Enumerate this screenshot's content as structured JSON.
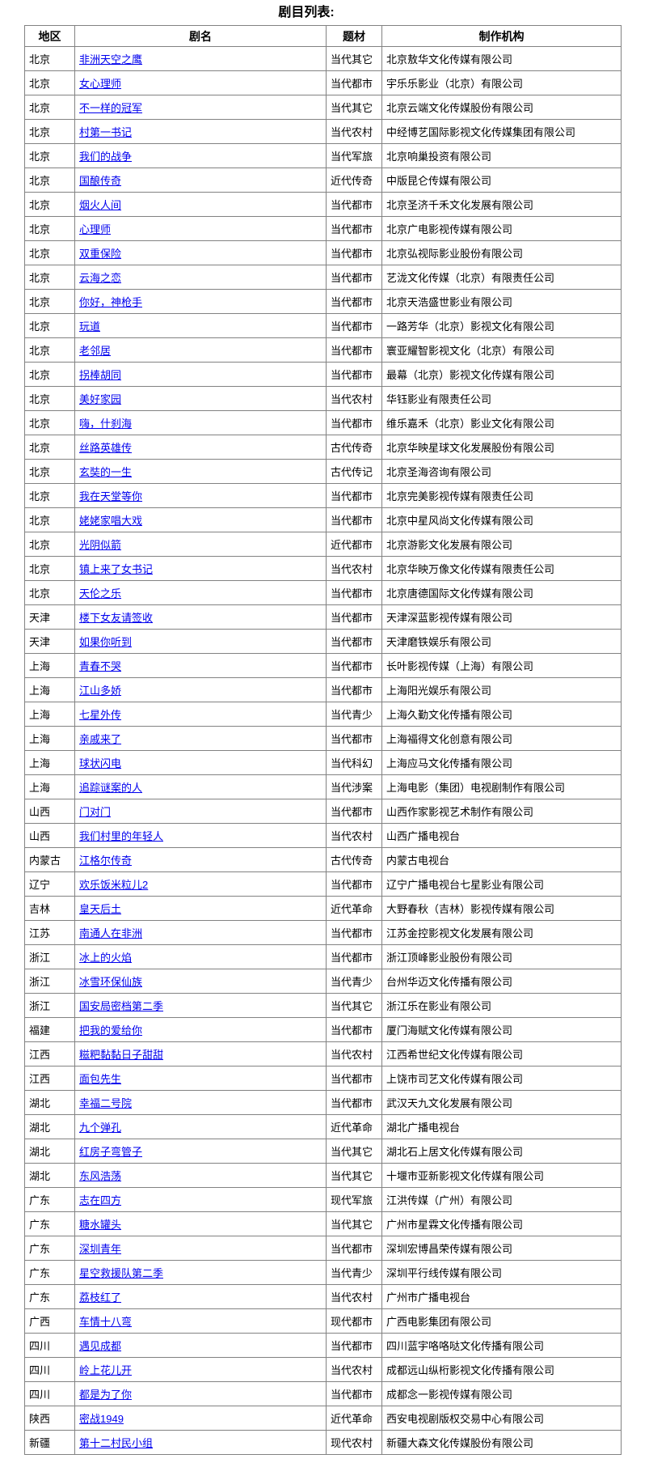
{
  "page": {
    "title": "剧目列表:"
  },
  "colors": {
    "link": "#0000EE",
    "border": "#828282",
    "text": "#000000",
    "background": "#ffffff"
  },
  "table": {
    "headers": [
      "地区",
      "剧名",
      "题材",
      "制作机构"
    ],
    "rows": [
      {
        "region": "北京",
        "title": "非洲天空之鹰",
        "genre": "当代其它",
        "producer": "北京敖华文化传媒有限公司"
      },
      {
        "region": "北京",
        "title": "女心理师",
        "genre": "当代都市",
        "producer": "宇乐乐影业（北京）有限公司"
      },
      {
        "region": "北京",
        "title": "不一样的冠军",
        "genre": "当代其它",
        "producer": "北京云端文化传媒股份有限公司"
      },
      {
        "region": "北京",
        "title": "村第一书记",
        "genre": "当代农村",
        "producer": "中经博艺国际影视文化传媒集团有限公司"
      },
      {
        "region": "北京",
        "title": "我们的战争",
        "genre": "当代军旅",
        "producer": "北京响巢投资有限公司"
      },
      {
        "region": "北京",
        "title": "国酿传奇",
        "genre": "近代传奇",
        "producer": "中版昆仑传媒有限公司"
      },
      {
        "region": "北京",
        "title": "烟火人间",
        "genre": "当代都市",
        "producer": "北京圣济千禾文化发展有限公司"
      },
      {
        "region": "北京",
        "title": "心理师",
        "genre": "当代都市",
        "producer": "北京广电影视传媒有限公司"
      },
      {
        "region": "北京",
        "title": "双重保险",
        "genre": "当代都市",
        "producer": "北京弘视际影业股份有限公司"
      },
      {
        "region": "北京",
        "title": "云海之恋",
        "genre": "当代都市",
        "producer": "艺泷文化传媒（北京）有限责任公司"
      },
      {
        "region": "北京",
        "title": "你好，神枪手",
        "genre": "当代都市",
        "producer": "北京天浩盛世影业有限公司"
      },
      {
        "region": "北京",
        "title": "玩道",
        "genre": "当代都市",
        "producer": "一路芳华（北京）影视文化有限公司"
      },
      {
        "region": "北京",
        "title": "老邻居",
        "genre": "当代都市",
        "producer": "寰亚耀智影视文化（北京）有限公司"
      },
      {
        "region": "北京",
        "title": "拐棒胡同",
        "genre": "当代都市",
        "producer": "最幕（北京）影视文化传媒有限公司"
      },
      {
        "region": "北京",
        "title": "美好家园",
        "genre": "当代农村",
        "producer": "华钰影业有限责任公司"
      },
      {
        "region": "北京",
        "title": "嗨，什刹海",
        "genre": "当代都市",
        "producer": "维乐嘉禾（北京）影业文化有限公司"
      },
      {
        "region": "北京",
        "title": "丝路英雄传",
        "genre": "古代传奇",
        "producer": "北京华映星球文化发展股份有限公司"
      },
      {
        "region": "北京",
        "title": "玄奘的一生",
        "genre": "古代传记",
        "producer": "北京圣海咨询有限公司"
      },
      {
        "region": "北京",
        "title": "我在天堂等你",
        "genre": "当代都市",
        "producer": "北京完美影视传媒有限责任公司"
      },
      {
        "region": "北京",
        "title": "姥姥家唱大戏",
        "genre": "当代都市",
        "producer": "北京中星风尚文化传媒有限公司"
      },
      {
        "region": "北京",
        "title": "光阴似箭",
        "genre": "近代都市",
        "producer": "北京游影文化发展有限公司"
      },
      {
        "region": "北京",
        "title": "镇上来了女书记",
        "genre": "当代农村",
        "producer": "北京华映万像文化传媒有限责任公司"
      },
      {
        "region": "北京",
        "title": "天伦之乐",
        "genre": "当代都市",
        "producer": "北京唐德国际文化传媒有限公司"
      },
      {
        "region": "天津",
        "title": "楼下女友请签收",
        "genre": "当代都市",
        "producer": "天津深蓝影视传媒有限公司"
      },
      {
        "region": "天津",
        "title": "如果你听到",
        "genre": "当代都市",
        "producer": "天津磨铁娱乐有限公司"
      },
      {
        "region": "上海",
        "title": "青春不哭",
        "genre": "当代都市",
        "producer": "长叶影视传媒（上海）有限公司"
      },
      {
        "region": "上海",
        "title": "江山多娇",
        "genre": "当代都市",
        "producer": "上海阳光娱乐有限公司"
      },
      {
        "region": "上海",
        "title": "七星外传",
        "genre": "当代青少",
        "producer": "上海久勤文化传播有限公司"
      },
      {
        "region": "上海",
        "title": "亲戚来了",
        "genre": "当代都市",
        "producer": "上海福得文化创意有限公司"
      },
      {
        "region": "上海",
        "title": "球状闪电",
        "genre": "当代科幻",
        "producer": "上海应马文化传播有限公司"
      },
      {
        "region": "上海",
        "title": "追踪谜案的人",
        "genre": "当代涉案",
        "producer": "上海电影（集团）电视剧制作有限公司"
      },
      {
        "region": "山西",
        "title": "门对门",
        "genre": "当代都市",
        "producer": "山西作家影视艺术制作有限公司"
      },
      {
        "region": "山西",
        "title": "我们村里的年轻人",
        "genre": "当代农村",
        "producer": "山西广播电视台"
      },
      {
        "region": "内蒙古",
        "title": "江格尔传奇",
        "genre": "古代传奇",
        "producer": "内蒙古电视台"
      },
      {
        "region": "辽宁",
        "title": "欢乐饭米粒儿2",
        "genre": "当代都市",
        "producer": "辽宁广播电视台七星影业有限公司"
      },
      {
        "region": "吉林",
        "title": "皇天后土",
        "genre": "近代革命",
        "producer": "大野春秋（吉林）影视传媒有限公司"
      },
      {
        "region": "江苏",
        "title": "南通人在非洲",
        "genre": "当代都市",
        "producer": "江苏金控影视文化发展有限公司"
      },
      {
        "region": "浙江",
        "title": "冰上的火焰",
        "genre": "当代都市",
        "producer": "浙江顶峰影业股份有限公司"
      },
      {
        "region": "浙江",
        "title": "冰雪环保仙族",
        "genre": "当代青少",
        "producer": "台州华迈文化传播有限公司"
      },
      {
        "region": "浙江",
        "title": "国安局密档第二季",
        "genre": "当代其它",
        "producer": "浙江乐在影业有限公司"
      },
      {
        "region": "福建",
        "title": "把我的爱给你",
        "genre": "当代都市",
        "producer": "厦门海赋文化传媒有限公司"
      },
      {
        "region": "江西",
        "title": "糍粑黏黏日子甜甜",
        "genre": "当代农村",
        "producer": "江西希世纪文化传媒有限公司"
      },
      {
        "region": "江西",
        "title": "面包先生",
        "genre": "当代都市",
        "producer": "上饶市司艺文化传媒有限公司"
      },
      {
        "region": "湖北",
        "title": "幸福二号院",
        "genre": "当代都市",
        "producer": "武汉天九文化发展有限公司"
      },
      {
        "region": "湖北",
        "title": "九个弹孔",
        "genre": "近代革命",
        "producer": "湖北广播电视台"
      },
      {
        "region": "湖北",
        "title": "红房子弯管子",
        "genre": "当代其它",
        "producer": "湖北石上居文化传媒有限公司"
      },
      {
        "region": "湖北",
        "title": "东风浩荡",
        "genre": "当代其它",
        "producer": "十堰市亚新影视文化传媒有限公司"
      },
      {
        "region": "广东",
        "title": "志在四方",
        "genre": "现代军旅",
        "producer": "江洪传媒（广州）有限公司"
      },
      {
        "region": "广东",
        "title": "糖水罐头",
        "genre": "当代其它",
        "producer": "广州市星霖文化传播有限公司"
      },
      {
        "region": "广东",
        "title": "深圳青年",
        "genre": "当代都市",
        "producer": "深圳宏博昌荣传媒有限公司"
      },
      {
        "region": "广东",
        "title": "星空救援队第二季",
        "genre": "当代青少",
        "producer": "深圳平行线传媒有限公司"
      },
      {
        "region": "广东",
        "title": "荔枝红了",
        "genre": "当代农村",
        "producer": "广州市广播电视台"
      },
      {
        "region": "广西",
        "title": "车情十八弯",
        "genre": "现代都市",
        "producer": "广西电影集团有限公司"
      },
      {
        "region": "四川",
        "title": "遇见成都",
        "genre": "当代都市",
        "producer": "四川蓝宇咯咯哒文化传播有限公司"
      },
      {
        "region": "四川",
        "title": "岭上花儿开",
        "genre": "当代农村",
        "producer": "成都远山纵桁影视文化传播有限公司"
      },
      {
        "region": "四川",
        "title": "都是为了你",
        "genre": "当代都市",
        "producer": "成都念一影视传媒有限公司"
      },
      {
        "region": "陕西",
        "title": "密战1949",
        "genre": "近代革命",
        "producer": "西安电视剧版权交易中心有限公司"
      },
      {
        "region": "新疆",
        "title": "第十二村民小组",
        "genre": "现代农村",
        "producer": "新疆大森文化传媒股份有限公司"
      }
    ]
  }
}
